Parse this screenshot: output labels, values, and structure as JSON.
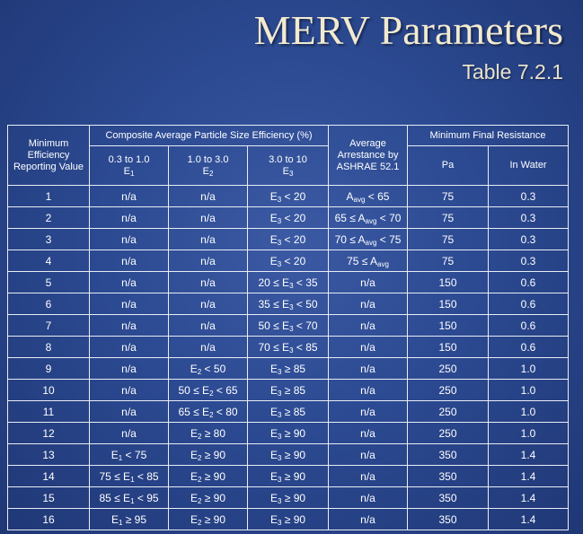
{
  "page": {
    "title": "MERV Parameters",
    "subtitle": "Table 7.2.1"
  },
  "table": {
    "headers": {
      "merv_line1": "Minimum",
      "merv_line2": "Efficiency",
      "merv_line3": "Reporting Value",
      "composite": "Composite Average Particle Size Efficiency (%)",
      "e1_range": "0.3 to 1.0",
      "e1_symbol": "E",
      "e1_sub": "1",
      "e2_range": "1.0 to 3.0",
      "e2_symbol": "E",
      "e2_sub": "2",
      "e3_range": "3.0 to 10",
      "e3_symbol": "E",
      "e3_sub": "3",
      "arrest_line1": "Average",
      "arrest_line2": "Arrestance by",
      "arrest_line3": "ASHRAE 52.1",
      "resistance": "Minimum Final Resistance",
      "pa": "Pa",
      "inwater": "In Water"
    },
    "rows": [
      {
        "merv": "1",
        "e1": [
          [
            "n/a",
            ""
          ]
        ],
        "e2": [
          [
            "n/a",
            ""
          ]
        ],
        "e3": [
          [
            "E",
            "3"
          ],
          [
            " < 20",
            ""
          ]
        ],
        "arrest": [
          [
            "A",
            "avg"
          ],
          [
            " < 65",
            ""
          ]
        ],
        "pa": "75",
        "inw": "0.3"
      },
      {
        "merv": "2",
        "e1": [
          [
            "n/a",
            ""
          ]
        ],
        "e2": [
          [
            "n/a",
            ""
          ]
        ],
        "e3": [
          [
            "E",
            "3"
          ],
          [
            " < 20",
            ""
          ]
        ],
        "arrest": [
          [
            "65 ≤ A",
            "avg"
          ],
          [
            " < 70",
            ""
          ]
        ],
        "pa": "75",
        "inw": "0.3"
      },
      {
        "merv": "3",
        "e1": [
          [
            "n/a",
            ""
          ]
        ],
        "e2": [
          [
            "n/a",
            ""
          ]
        ],
        "e3": [
          [
            "E",
            "3"
          ],
          [
            " < 20",
            ""
          ]
        ],
        "arrest": [
          [
            "70 ≤ A",
            "avg"
          ],
          [
            " < 75",
            ""
          ]
        ],
        "pa": "75",
        "inw": "0.3"
      },
      {
        "merv": "4",
        "e1": [
          [
            "n/a",
            ""
          ]
        ],
        "e2": [
          [
            "n/a",
            ""
          ]
        ],
        "e3": [
          [
            "E",
            "3"
          ],
          [
            " < 20",
            ""
          ]
        ],
        "arrest": [
          [
            "75 ≤ A",
            "avg"
          ]
        ],
        "pa": "75",
        "inw": "0.3"
      },
      {
        "merv": "5",
        "e1": [
          [
            "n/a",
            ""
          ]
        ],
        "e2": [
          [
            "n/a",
            ""
          ]
        ],
        "e3": [
          [
            "20 ≤ E",
            "3"
          ],
          [
            " < 35",
            ""
          ]
        ],
        "arrest": [
          [
            "n/a",
            ""
          ]
        ],
        "pa": "150",
        "inw": "0.6"
      },
      {
        "merv": "6",
        "e1": [
          [
            "n/a",
            ""
          ]
        ],
        "e2": [
          [
            "n/a",
            ""
          ]
        ],
        "e3": [
          [
            "35 ≤ E",
            "3"
          ],
          [
            " < 50",
            ""
          ]
        ],
        "arrest": [
          [
            "n/a",
            ""
          ]
        ],
        "pa": "150",
        "inw": "0.6"
      },
      {
        "merv": "7",
        "e1": [
          [
            "n/a",
            ""
          ]
        ],
        "e2": [
          [
            "n/a",
            ""
          ]
        ],
        "e3": [
          [
            "50 ≤ E",
            "3"
          ],
          [
            " < 70",
            ""
          ]
        ],
        "arrest": [
          [
            "n/a",
            ""
          ]
        ],
        "pa": "150",
        "inw": "0.6"
      },
      {
        "merv": "8",
        "e1": [
          [
            "n/a",
            ""
          ]
        ],
        "e2": [
          [
            "n/a",
            ""
          ]
        ],
        "e3": [
          [
            "70 ≤ E",
            "3"
          ],
          [
            " < 85",
            ""
          ]
        ],
        "arrest": [
          [
            "n/a",
            ""
          ]
        ],
        "pa": "150",
        "inw": "0.6"
      },
      {
        "merv": "9",
        "e1": [
          [
            "n/a",
            ""
          ]
        ],
        "e2": [
          [
            "E",
            "2"
          ],
          [
            " < 50",
            ""
          ]
        ],
        "e3": [
          [
            "E",
            "3"
          ],
          [
            " ≥ 85",
            ""
          ]
        ],
        "arrest": [
          [
            "n/a",
            ""
          ]
        ],
        "pa": "250",
        "inw": "1.0"
      },
      {
        "merv": "10",
        "e1": [
          [
            "n/a",
            ""
          ]
        ],
        "e2": [
          [
            "50 ≤ E",
            "2"
          ],
          [
            " < 65",
            ""
          ]
        ],
        "e3": [
          [
            "E",
            "3"
          ],
          [
            " ≥ 85",
            ""
          ]
        ],
        "arrest": [
          [
            "n/a",
            ""
          ]
        ],
        "pa": "250",
        "inw": "1.0"
      },
      {
        "merv": "11",
        "e1": [
          [
            "n/a",
            ""
          ]
        ],
        "e2": [
          [
            "65 ≤ E",
            "2"
          ],
          [
            " < 80",
            ""
          ]
        ],
        "e3": [
          [
            "E",
            "3"
          ],
          [
            " ≥ 85",
            ""
          ]
        ],
        "arrest": [
          [
            "n/a",
            ""
          ]
        ],
        "pa": "250",
        "inw": "1.0"
      },
      {
        "merv": "12",
        "e1": [
          [
            "n/a",
            ""
          ]
        ],
        "e2": [
          [
            "E",
            "2"
          ],
          [
            " ≥ 80",
            ""
          ]
        ],
        "e3": [
          [
            "E",
            "3"
          ],
          [
            " ≥ 90",
            ""
          ]
        ],
        "arrest": [
          [
            "n/a",
            ""
          ]
        ],
        "pa": "250",
        "inw": "1.0"
      },
      {
        "merv": "13",
        "e1": [
          [
            "E",
            "1"
          ],
          [
            " < 75",
            ""
          ]
        ],
        "e2": [
          [
            "E",
            "2"
          ],
          [
            " ≥ 90",
            ""
          ]
        ],
        "e3": [
          [
            "E",
            "3"
          ],
          [
            " ≥ 90",
            ""
          ]
        ],
        "arrest": [
          [
            "n/a",
            ""
          ]
        ],
        "pa": "350",
        "inw": "1.4"
      },
      {
        "merv": "14",
        "e1": [
          [
            "75 ≤ E",
            "1"
          ],
          [
            " < 85",
            ""
          ]
        ],
        "e2": [
          [
            "E",
            "2"
          ],
          [
            " ≥ 90",
            ""
          ]
        ],
        "e3": [
          [
            "E",
            "3"
          ],
          [
            " ≥ 90",
            ""
          ]
        ],
        "arrest": [
          [
            "n/a",
            ""
          ]
        ],
        "pa": "350",
        "inw": "1.4"
      },
      {
        "merv": "15",
        "e1": [
          [
            "85 ≤ E",
            "1"
          ],
          [
            " < 95",
            ""
          ]
        ],
        "e2": [
          [
            "E",
            "2"
          ],
          [
            " ≥ 90",
            ""
          ]
        ],
        "e3": [
          [
            "E",
            "3"
          ],
          [
            " ≥ 90",
            ""
          ]
        ],
        "arrest": [
          [
            "n/a",
            ""
          ]
        ],
        "pa": "350",
        "inw": "1.4"
      },
      {
        "merv": "16",
        "e1": [
          [
            "E",
            "1"
          ],
          [
            " ≥ 95",
            ""
          ]
        ],
        "e2": [
          [
            "E",
            "2"
          ],
          [
            " ≥ 90",
            ""
          ]
        ],
        "e3": [
          [
            "E",
            "3"
          ],
          [
            " ≥ 90",
            ""
          ]
        ],
        "arrest": [
          [
            "n/a",
            ""
          ]
        ],
        "pa": "350",
        "inw": "1.4"
      }
    ]
  }
}
